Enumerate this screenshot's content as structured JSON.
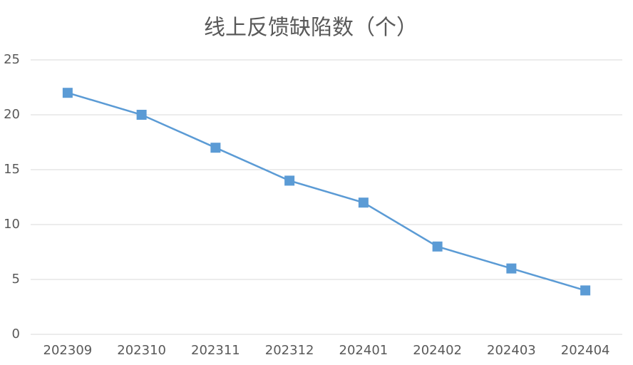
{
  "chart_data": {
    "type": "line",
    "title": "线上反馈缺陷数（个）",
    "categories": [
      "202309",
      "202310",
      "202311",
      "202312",
      "202401",
      "202402",
      "202403",
      "202404"
    ],
    "values": [
      22,
      20,
      17,
      14,
      12,
      8,
      6,
      4
    ],
    "color": "#5b9bd5",
    "ylim": [
      0,
      25
    ],
    "yticks": [
      0,
      5,
      10,
      15,
      20,
      25
    ],
    "grid": true
  }
}
